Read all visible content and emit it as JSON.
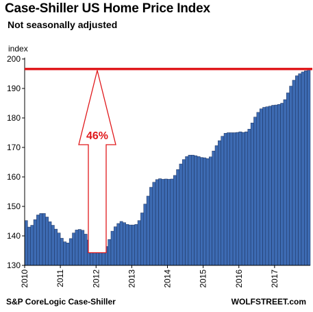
{
  "title": "Case-Shiller US Home Price Index",
  "subtitle": "Not seasonally adjusted",
  "source": "S&P CoreLogic Case-Shiller",
  "brand": "WOLFSTREET.com",
  "chart_data": {
    "type": "bar",
    "title": "Case-Shiller US Home Price Index",
    "subtitle": "Not seasonally adjusted",
    "ylabel": "index",
    "xlabel": "",
    "ylim": [
      130,
      200
    ],
    "yticks": [
      130,
      140,
      150,
      160,
      170,
      180,
      190,
      200
    ],
    "xticks": [
      "2010",
      "2011",
      "2012",
      "2013",
      "2014",
      "2015",
      "2016",
      "2017"
    ],
    "grid": false,
    "bar_color": "#3d6bb3",
    "reference_line": {
      "value": 196.6,
      "color": "#e0181b"
    },
    "annotation": {
      "text": "46%",
      "from": 134.3,
      "to": 196.6,
      "color": "#e0181b"
    },
    "x": [
      "2010-01",
      "2010-02",
      "2010-03",
      "2010-04",
      "2010-05",
      "2010-06",
      "2010-07",
      "2010-08",
      "2010-09",
      "2010-10",
      "2010-11",
      "2010-12",
      "2011-01",
      "2011-02",
      "2011-03",
      "2011-04",
      "2011-05",
      "2011-06",
      "2011-07",
      "2011-08",
      "2011-09",
      "2011-10",
      "2011-11",
      "2011-12",
      "2012-01",
      "2012-02",
      "2012-03",
      "2012-04",
      "2012-05",
      "2012-06",
      "2012-07",
      "2012-08",
      "2012-09",
      "2012-10",
      "2012-11",
      "2012-12",
      "2013-01",
      "2013-02",
      "2013-03",
      "2013-04",
      "2013-05",
      "2013-06",
      "2013-07",
      "2013-08",
      "2013-09",
      "2013-10",
      "2013-11",
      "2013-12",
      "2014-01",
      "2014-02",
      "2014-03",
      "2014-04",
      "2014-05",
      "2014-06",
      "2014-07",
      "2014-08",
      "2014-09",
      "2014-10",
      "2014-11",
      "2014-12",
      "2015-01",
      "2015-02",
      "2015-03",
      "2015-04",
      "2015-05",
      "2015-06",
      "2015-07",
      "2015-08",
      "2015-09",
      "2015-10",
      "2015-11",
      "2015-12",
      "2016-01",
      "2016-02",
      "2016-03",
      "2016-04",
      "2016-05",
      "2016-06",
      "2016-07",
      "2016-08",
      "2016-09",
      "2016-10",
      "2016-11",
      "2016-12",
      "2017-01",
      "2017-02",
      "2017-03",
      "2017-04",
      "2017-05",
      "2017-06",
      "2017-07",
      "2017-08",
      "2017-09",
      "2017-10",
      "2017-11",
      "2017-12"
    ],
    "values": [
      145.2,
      143.0,
      143.6,
      145.5,
      147.1,
      147.6,
      147.6,
      146.4,
      144.8,
      143.6,
      142.3,
      141.0,
      139.2,
      138.0,
      137.6,
      139.1,
      141.0,
      142.0,
      142.2,
      141.9,
      140.6,
      138.6,
      136.8,
      135.3,
      134.7,
      134.3,
      134.5,
      136.4,
      138.8,
      141.6,
      143.1,
      144.2,
      144.9,
      144.5,
      143.9,
      143.7,
      143.7,
      143.9,
      145.2,
      147.8,
      150.8,
      153.5,
      156.5,
      158.2,
      159.1,
      159.4,
      159.2,
      159.3,
      159.2,
      159.3,
      160.5,
      162.5,
      164.4,
      165.9,
      166.9,
      167.4,
      167.4,
      167.2,
      166.9,
      166.6,
      166.5,
      166.2,
      166.8,
      168.8,
      170.6,
      172.3,
      173.8,
      174.8,
      175.0,
      175.0,
      175.0,
      175.1,
      175.3,
      175.1,
      175.3,
      176.2,
      178.3,
      180.3,
      181.9,
      183.1,
      183.6,
      183.8,
      184.0,
      184.3,
      184.4,
      184.6,
      185.0,
      186.2,
      188.5,
      190.8,
      192.8,
      194.3,
      195.0,
      195.6,
      196.0,
      196.6
    ]
  }
}
